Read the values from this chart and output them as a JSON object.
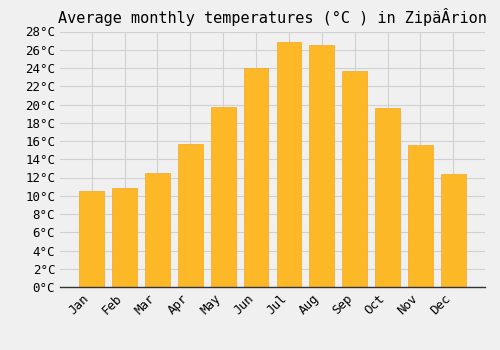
{
  "title": "Average monthly temperatures (°C ) in ZipäÂrion",
  "months": [
    "Jan",
    "Feb",
    "Mar",
    "Apr",
    "May",
    "Jun",
    "Jul",
    "Aug",
    "Sep",
    "Oct",
    "Nov",
    "Dec"
  ],
  "values": [
    10.5,
    10.8,
    12.5,
    15.7,
    19.7,
    24.0,
    26.8,
    26.5,
    23.7,
    19.6,
    15.6,
    12.4
  ],
  "bar_color": "#FDB827",
  "bar_edge_color": "#F5A623",
  "background_color": "#f0f0f0",
  "grid_color": "#d0d0d0",
  "ylim": [
    0,
    28
  ],
  "ytick_step": 2,
  "title_fontsize": 11,
  "tick_fontsize": 9,
  "font_family": "monospace"
}
